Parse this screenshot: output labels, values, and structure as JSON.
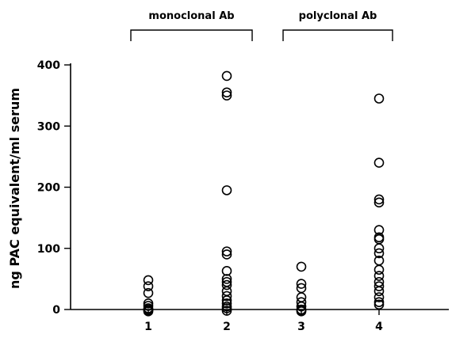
{
  "chart_data": {
    "type": "scatter",
    "title": "",
    "xlabel": "",
    "ylabel": "ng PAC equivalent/ml serum",
    "categories": [
      "1",
      "2",
      "3",
      "4"
    ],
    "yticks": [
      0,
      100,
      200,
      300,
      400
    ],
    "ylim": [
      0,
      400
    ],
    "grid": false,
    "groups": [
      {
        "label": "monoclonal Ab",
        "spans_categories": [
          "1",
          "2"
        ]
      },
      {
        "label": "polyclonal Ab",
        "spans_categories": [
          "3",
          "4"
        ]
      }
    ],
    "series": [
      {
        "category": "1",
        "values": [
          48,
          38,
          27,
          10,
          6,
          2,
          0,
          -2,
          -3
        ]
      },
      {
        "category": "2",
        "values": [
          382,
          355,
          350,
          195,
          95,
          90,
          63,
          50,
          45,
          40,
          30,
          22,
          15,
          10,
          5,
          2,
          -2
        ]
      },
      {
        "category": "3",
        "values": [
          70,
          42,
          35,
          20,
          12,
          5,
          0,
          -2,
          -3
        ]
      },
      {
        "category": "4",
        "values": [
          345,
          240,
          180,
          175,
          130,
          118,
          115,
          100,
          92,
          80,
          65,
          55,
          45,
          38,
          30,
          20,
          12,
          8
        ]
      }
    ]
  }
}
